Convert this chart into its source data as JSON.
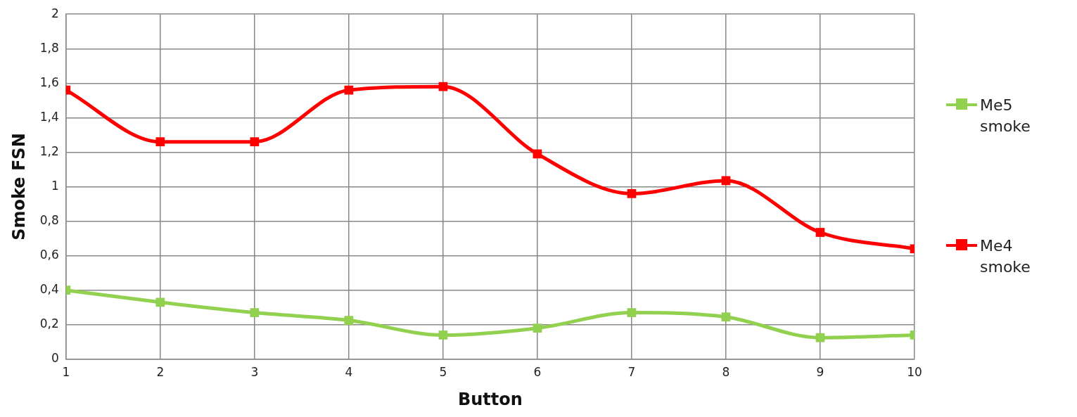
{
  "chart_data": {
    "type": "line",
    "xlabel": "Button",
    "ylabel": "Smoke FSN",
    "x": [
      1,
      2,
      3,
      4,
      5,
      6,
      7,
      8,
      9,
      10
    ],
    "series": [
      {
        "name": "Me5 smoke",
        "color": "#92d050",
        "values": [
          0.4,
          0.33,
          0.27,
          0.225,
          0.14,
          0.18,
          0.27,
          0.245,
          0.125,
          0.14
        ]
      },
      {
        "name": "Me4 smoke",
        "color": "#ff0000",
        "values": [
          1.56,
          1.26,
          1.26,
          1.56,
          1.58,
          1.19,
          0.96,
          1.035,
          0.735,
          0.64
        ]
      }
    ],
    "xlim": [
      1,
      10
    ],
    "xticks": [
      1,
      2,
      3,
      4,
      5,
      6,
      7,
      8,
      9,
      10
    ],
    "ylim": [
      0,
      2
    ],
    "yticks": [
      0,
      {
        "value": 0.2,
        "label": "0,2"
      },
      {
        "value": 0.4,
        "label": "0,4"
      },
      {
        "value": 0.6,
        "label": "0,6"
      },
      {
        "value": 0.8,
        "label": "0,8"
      },
      1,
      {
        "value": 1.2,
        "label": "1,2"
      },
      {
        "value": 1.4,
        "label": "1,4"
      },
      {
        "value": 1.6,
        "label": "1,6"
      },
      {
        "value": 1.8,
        "label": "1,8"
      },
      2
    ],
    "grid": true,
    "legend": "right",
    "marker": "square",
    "line_style": "solid"
  }
}
